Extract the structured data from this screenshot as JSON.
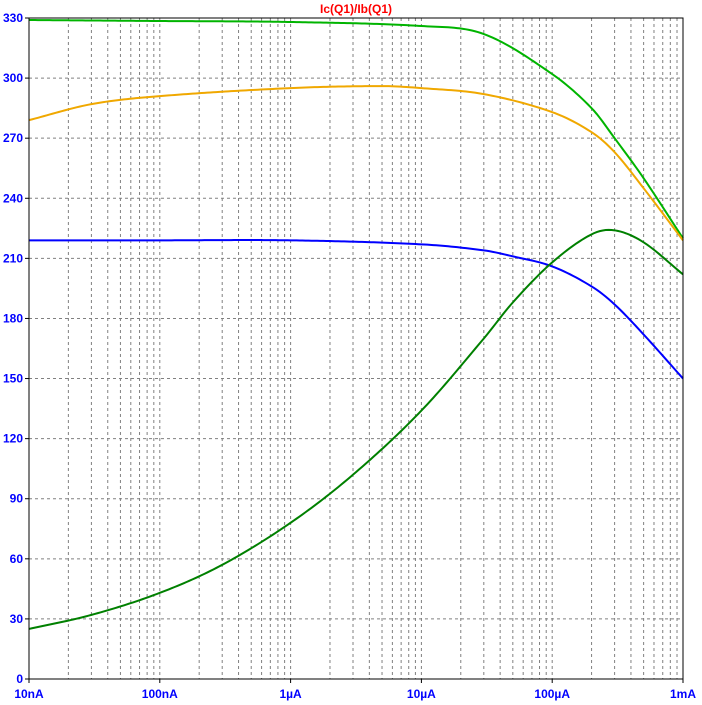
{
  "chart_data": {
    "type": "line",
    "title": "Ic(Q1)/Ib(Q1)",
    "xlabel": "",
    "ylabel": "",
    "x_scale": "log",
    "xlim": [
      "10nA",
      "1mA"
    ],
    "ylim": [
      0,
      330
    ],
    "grid": true,
    "x_tick_labels": [
      "10nA",
      "100nA",
      "1µA",
      "10µA",
      "100µA",
      "1mA"
    ],
    "y_tick_labels": [
      "0",
      "30",
      "60",
      "90",
      "120",
      "150",
      "180",
      "210",
      "240",
      "270",
      "300",
      "330"
    ],
    "colors": {
      "title": "#ff0000",
      "tick_labels": "#0000ff",
      "grid": "#808080",
      "axes": "#000000"
    },
    "series": [
      {
        "color": "#00b400",
        "x": [
          "10nA",
          "100nA",
          "1µA",
          "10µA",
          "30µA",
          "100µA",
          "200µA",
          "300µA",
          "500µA",
          "1mA"
        ],
        "y": [
          329,
          328.5,
          328,
          326,
          322,
          302,
          285,
          270,
          250,
          220
        ]
      },
      {
        "color": "#f0a800",
        "x": [
          "10nA",
          "30nA",
          "100nA",
          "1µA",
          "5µA",
          "10µA",
          "30µA",
          "100µA",
          "200µA",
          "300µA",
          "500µA",
          "1mA"
        ],
        "y": [
          279,
          287,
          291,
          295,
          296,
          295,
          292,
          283,
          273,
          263,
          245,
          219
        ]
      },
      {
        "color": "#0000ff",
        "x": [
          "10nA",
          "100nA",
          "1µA",
          "10µA",
          "30µA",
          "50µA",
          "100µA",
          "200µA",
          "300µA",
          "500µA",
          "1mA"
        ],
        "y": [
          219,
          219,
          219,
          217,
          214,
          211,
          206,
          196,
          187,
          172,
          150
        ]
      },
      {
        "color": "#008000",
        "x": [
          "10nA",
          "30nA",
          "100nA",
          "300nA",
          "1µA",
          "3µA",
          "10µA",
          "30µA",
          "50µA",
          "100µA",
          "200µA",
          "300µA",
          "500µA",
          "1mA"
        ],
        "y": [
          25,
          32,
          43,
          57,
          78,
          102,
          134,
          170,
          188,
          208,
          222,
          224,
          218,
          202
        ]
      }
    ]
  }
}
